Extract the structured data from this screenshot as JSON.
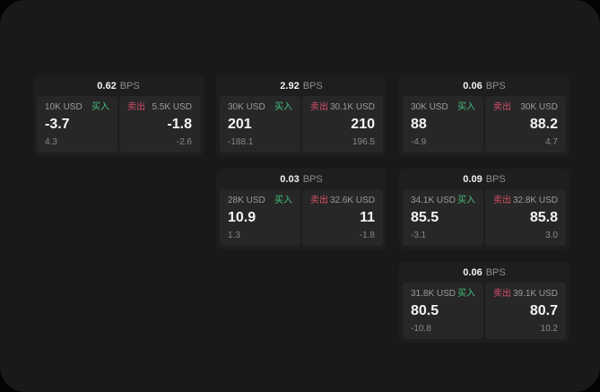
{
  "units": {
    "bps": "BPS"
  },
  "labels": {
    "buy": "买入",
    "sell": "卖出"
  },
  "colors": {
    "buy": "#45c17d",
    "sell": "#d4506a",
    "canvas": "#191919",
    "card": "#1e1e1e",
    "tile": "#272727"
  },
  "cards": [
    {
      "bps": "0.62",
      "buy": {
        "size": "10K USD",
        "price": "-3.7",
        "delta": "4.3"
      },
      "sell": {
        "size": "5.5K USD",
        "price": "-1.8",
        "delta": "-2.6"
      }
    },
    {
      "bps": "2.92",
      "buy": {
        "size": "30K USD",
        "price": "201",
        "delta": "-188.1"
      },
      "sell": {
        "size": "30.1K USD",
        "price": "210",
        "delta": "196.5"
      }
    },
    {
      "bps": "0.06",
      "buy": {
        "size": "30K USD",
        "price": "88",
        "delta": "-4.9"
      },
      "sell": {
        "size": "30K USD",
        "price": "88.2",
        "delta": "4.7"
      }
    },
    {
      "bps": "0.03",
      "buy": {
        "size": "28K USD",
        "price": "10.9",
        "delta": "1.3"
      },
      "sell": {
        "size": "32.6K USD",
        "price": "11",
        "delta": "-1.8"
      }
    },
    {
      "bps": "0.09",
      "buy": {
        "size": "34.1K USD",
        "price": "85.5",
        "delta": "-3.1"
      },
      "sell": {
        "size": "32.8K USD",
        "price": "85.8",
        "delta": "3.0"
      }
    },
    {
      "bps": "0.06",
      "buy": {
        "size": "31.8K USD",
        "price": "80.5",
        "delta": "-10.8"
      },
      "sell": {
        "size": "39.1K USD",
        "price": "80.7",
        "delta": "10.2"
      }
    }
  ]
}
